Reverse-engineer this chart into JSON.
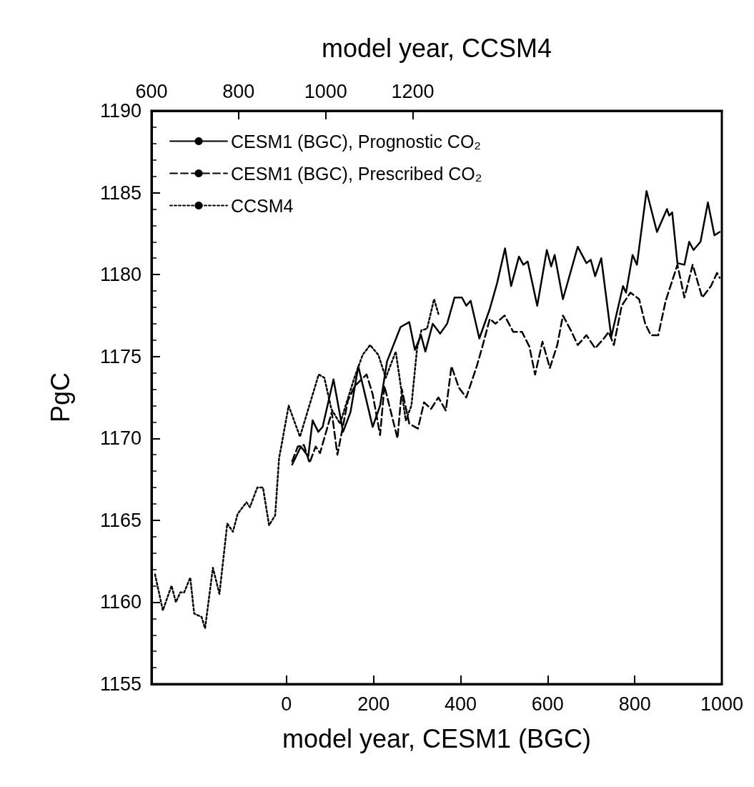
{
  "chart_data": {
    "type": "line",
    "xlabel": "model year, CESM1 (BGC)",
    "x2label": "model year, CCSM4",
    "ylabel": "PgC",
    "xlim": [
      -310,
      1000
    ],
    "xticks": [
      0,
      200,
      400,
      600,
      800,
      1000
    ],
    "x2lim": [
      600,
      1910
    ],
    "x2ticks": [
      600,
      800,
      1000,
      1200
    ],
    "ylim": [
      1155,
      1190
    ],
    "yticks": [
      1155,
      1160,
      1165,
      1170,
      1175,
      1180,
      1185,
      1190
    ],
    "legend": "top left",
    "grid": false,
    "marker": "none",
    "series": [
      {
        "name": "CESM1 (BGC), Prognostic CO₂",
        "color": "#000000",
        "line_style": "solid",
        "x": [
          13,
          33,
          50,
          60,
          73,
          83,
          108,
          130,
          147,
          165,
          198,
          215,
          231,
          262,
          282,
          295,
          309,
          319,
          336,
          353,
          369,
          386,
          403,
          413,
          423,
          443,
          467,
          484,
          502,
          516,
          534,
          544,
          554,
          576,
          598,
          608,
          616,
          635,
          669,
          689,
          699,
          709,
          723,
          746,
          773,
          780,
          795,
          805,
          827,
          851,
          874,
          879,
          886,
          898,
          914,
          925,
          935,
          951,
          968,
          983,
          995
        ],
        "values": [
          1168.4,
          1169.5,
          1168.9,
          1171.1,
          1170.4,
          1170.7,
          1173.6,
          1170.4,
          1171.6,
          1174.4,
          1170.7,
          1172.0,
          1174.7,
          1176.8,
          1177.1,
          1175.4,
          1176.3,
          1175.3,
          1177.0,
          1176.4,
          1177.0,
          1178.6,
          1178.6,
          1178.1,
          1178.4,
          1176.1,
          1177.9,
          1179.5,
          1181.6,
          1179.3,
          1181.1,
          1180.6,
          1180.8,
          1178.1,
          1181.5,
          1180.5,
          1181.2,
          1178.5,
          1181.7,
          1180.7,
          1180.9,
          1179.9,
          1181.0,
          1176.2,
          1179.3,
          1178.9,
          1181.2,
          1180.6,
          1185.1,
          1182.6,
          1184.0,
          1183.6,
          1183.8,
          1180.7,
          1180.6,
          1182.0,
          1181.5,
          1182.0,
          1184.4,
          1182.4,
          1182.6
        ]
      },
      {
        "name": "CESM1 (BGC), Prescribed CO₂",
        "color": "#000000",
        "line_style": "dashed",
        "x": [
          13,
          26,
          40,
          53,
          67,
          77,
          104,
          117,
          141,
          157,
          184,
          198,
          215,
          225,
          255,
          265,
          282,
          302,
          316,
          332,
          349,
          366,
          379,
          396,
          413,
          437,
          450,
          467,
          480,
          501,
          521,
          541,
          558,
          571,
          588,
          605,
          622,
          635,
          655,
          669,
          689,
          709,
          729,
          740,
          752,
          770,
          790,
          810,
          824,
          837,
          854,
          871,
          898,
          914,
          933,
          955,
          975,
          989,
          995
        ],
        "values": [
          1168.6,
          1169.5,
          1169.6,
          1168.5,
          1169.5,
          1169.1,
          1171.6,
          1169.0,
          1172.3,
          1173.2,
          1173.9,
          1172.7,
          1170.2,
          1173.2,
          1170.0,
          1173.0,
          1170.9,
          1170.6,
          1172.2,
          1171.8,
          1172.5,
          1171.7,
          1174.4,
          1173.1,
          1172.5,
          1174.4,
          1175.6,
          1177.3,
          1177.0,
          1177.5,
          1176.5,
          1176.5,
          1175.6,
          1173.9,
          1175.9,
          1174.3,
          1175.7,
          1177.5,
          1176.5,
          1175.7,
          1176.3,
          1175.5,
          1176.1,
          1176.5,
          1175.7,
          1178.1,
          1178.9,
          1178.5,
          1177.0,
          1176.3,
          1176.3,
          1178.4,
          1180.6,
          1178.6,
          1180.6,
          1178.6,
          1179.3,
          1180.1,
          1179.8
        ]
      },
      {
        "name": "CCSM4",
        "color": "#000000",
        "line_style": "dotted",
        "axis": "x2",
        "x": [
          608,
          626,
          646,
          656,
          666,
          675,
          689,
          698,
          715,
          723,
          741,
          756,
          774,
          787,
          798,
          818,
          826,
          843,
          856,
          870,
          884,
          893,
          898,
          915,
          941,
          984,
          997,
          1013,
          1033,
          1066,
          1085,
          1102,
          1121,
          1138,
          1161,
          1184,
          1197,
          1210,
          1220,
          1233,
          1249,
          1259
        ],
        "values": [
          1161.7,
          1159.5,
          1161.0,
          1160.0,
          1160.6,
          1160.6,
          1161.5,
          1159.3,
          1159.1,
          1158.4,
          1162.1,
          1160.5,
          1164.8,
          1164.3,
          1165.4,
          1166.1,
          1165.8,
          1167.0,
          1167.0,
          1164.7,
          1165.3,
          1168.8,
          1169.5,
          1172.0,
          1170.1,
          1173.9,
          1173.7,
          1171.8,
          1170.9,
          1173.7,
          1175.1,
          1175.7,
          1175.1,
          1173.7,
          1175.3,
          1171.1,
          1172.0,
          1175.5,
          1176.6,
          1176.7,
          1178.5,
          1177.6
        ]
      }
    ]
  }
}
